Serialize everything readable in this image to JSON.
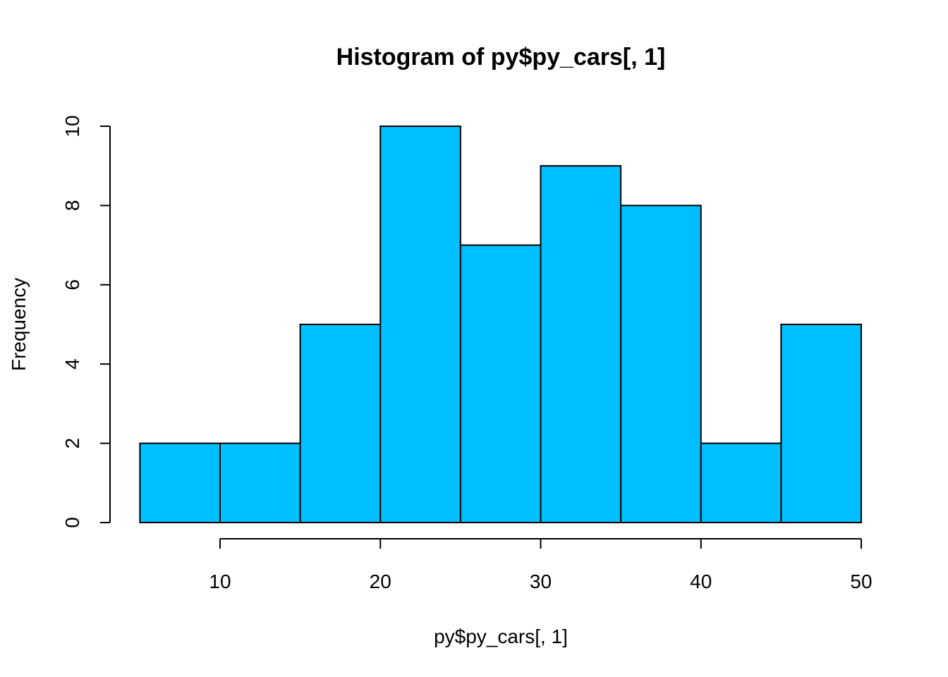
{
  "chart_data": {
    "type": "bar",
    "title": "Histogram of py$py_cars[, 1]",
    "xlabel": "py$py_cars[, 1]",
    "ylabel": "Frequency",
    "bins": [
      {
        "start": 5,
        "end": 10,
        "count": 2
      },
      {
        "start": 10,
        "end": 15,
        "count": 2
      },
      {
        "start": 15,
        "end": 20,
        "count": 5
      },
      {
        "start": 20,
        "end": 25,
        "count": 10
      },
      {
        "start": 25,
        "end": 30,
        "count": 7
      },
      {
        "start": 30,
        "end": 35,
        "count": 9
      },
      {
        "start": 35,
        "end": 40,
        "count": 8
      },
      {
        "start": 40,
        "end": 45,
        "count": 2
      },
      {
        "start": 45,
        "end": 50,
        "count": 5
      }
    ],
    "x_ticks": [
      10,
      20,
      30,
      40,
      50
    ],
    "y_ticks": [
      0,
      2,
      4,
      6,
      8,
      10
    ],
    "xlim": [
      10,
      50
    ],
    "ylim": [
      0,
      10
    ],
    "bar_color": "#00BFFF",
    "grid": false
  }
}
